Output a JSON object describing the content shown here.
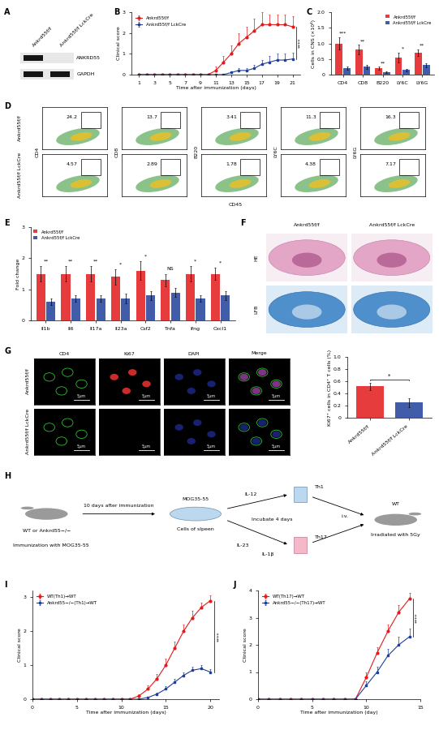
{
  "chart_data": [
    {
      "type": "line",
      "xlabel": "Time after immunization (days)",
      "ylabel": "Clinical score",
      "x": [
        1,
        2,
        3,
        4,
        5,
        6,
        7,
        8,
        9,
        10,
        11,
        12,
        13,
        14,
        15,
        16,
        17,
        18,
        19,
        20,
        21
      ],
      "xlim": [
        0,
        22
      ],
      "xticks": [
        1,
        3,
        5,
        7,
        9,
        11,
        13,
        15,
        17,
        19,
        21
      ],
      "ylim": [
        0,
        3
      ],
      "yticks": [
        0,
        1,
        2,
        3
      ],
      "legend": "upper left",
      "annotations": [
        "****"
      ],
      "series": [
        {
          "name": "Ankrd55f/f",
          "color": "#e31a1c",
          "marker": "o",
          "values": [
            0,
            0,
            0,
            0,
            0,
            0,
            0,
            0,
            0,
            0,
            0.2,
            0.6,
            1.0,
            1.5,
            1.8,
            2.1,
            2.4,
            2.4,
            2.4,
            2.4,
            2.3
          ],
          "errors": [
            0,
            0,
            0,
            0,
            0,
            0,
            0,
            0,
            0,
            0,
            0.2,
            0.3,
            0.4,
            0.5,
            0.5,
            0.6,
            0.6,
            0.5,
            0.5,
            0.5,
            0.5
          ]
        },
        {
          "name": "Ankrd55f/f LckCre",
          "color": "#1f3f99",
          "marker": "s",
          "values": [
            0,
            0,
            0,
            0,
            0,
            0,
            0,
            0,
            0,
            0,
            0,
            0,
            0.1,
            0.2,
            0.2,
            0.3,
            0.5,
            0.6,
            0.7,
            0.7,
            0.75
          ],
          "errors": [
            0,
            0,
            0,
            0,
            0,
            0,
            0,
            0,
            0,
            0,
            0,
            0,
            0.05,
            0.1,
            0.1,
            0.15,
            0.2,
            0.3,
            0.3,
            0.3,
            0.3
          ]
        }
      ]
    },
    {
      "type": "bar",
      "ylabel": "Cells in CNS (×10⁴)",
      "categories": [
        "CD4",
        "CD8",
        "B220",
        "LY6C",
        "LY6G"
      ],
      "ylim": [
        0,
        2
      ],
      "yticks": [
        0,
        0.5,
        {
          "value": 1,
          "label": "1.0"
        },
        1.5,
        {
          "value": 2,
          "label": "2.0"
        }
      ],
      "legend": "upper right",
      "annotations": [
        "***",
        "**",
        "**",
        "*",
        "**"
      ],
      "series": [
        {
          "name": "Ankrd55f/f",
          "color": "#e31a1c",
          "values": [
            1.0,
            0.8,
            0.2,
            0.55,
            0.7
          ],
          "errors": [
            0.2,
            0.15,
            0.05,
            0.15,
            0.1
          ]
        },
        {
          "name": "Ankrd55f/f LckCre",
          "color": "#1f3f99",
          "values": [
            0.2,
            0.25,
            0.08,
            0.15,
            0.3
          ],
          "errors": [
            0.05,
            0.07,
            0.02,
            0.04,
            0.06
          ]
        }
      ]
    },
    {
      "type": "bar",
      "ylabel": "Fold change",
      "categories": [
        "Il1b",
        "Il6",
        "Il17a",
        "Il23a",
        "Csf2",
        "Tnfa",
        "Ifng",
        "Cxcl1"
      ],
      "ylim": [
        0,
        3
      ],
      "yticks": [
        0,
        1,
        2,
        3
      ],
      "legend": "upper left",
      "annotations": [
        "**",
        "**",
        "**",
        "*",
        "*",
        "NS",
        "*",
        "*"
      ],
      "series": [
        {
          "name": "Ankrd55f/f",
          "color": "#e31a1c",
          "values": [
            1.5,
            1.5,
            1.5,
            1.4,
            1.6,
            1.3,
            1.5,
            1.5
          ],
          "errors": [
            0.25,
            0.25,
            0.25,
            0.25,
            0.3,
            0.2,
            0.25,
            0.2
          ]
        },
        {
          "name": "Ankrd55f/f LckCre",
          "color": "#1f3f99",
          "values": [
            0.6,
            0.7,
            0.7,
            0.7,
            0.8,
            0.9,
            0.7,
            0.8
          ],
          "errors": [
            0.1,
            0.1,
            0.1,
            0.15,
            0.15,
            0.15,
            0.1,
            0.15
          ]
        }
      ]
    },
    {
      "type": "bar",
      "ylabel": "Ki67⁺ cells in CD4⁺ T cells (%)",
      "categories": [
        "Ankrd55f/f",
        "Ankrd55f/f LckCre"
      ],
      "colors": [
        "#e31a1c",
        "#1f3f99"
      ],
      "ylim": [
        0,
        1
      ],
      "yticks": [
        0,
        0.2,
        0.4,
        0.6,
        0.8,
        {
          "value": 1,
          "label": "1.0"
        }
      ],
      "annotations": [
        "*",
        null
      ],
      "series": [
        {
          "values": [
            0.52,
            0.25
          ],
          "errors": [
            0.06,
            0.07
          ]
        }
      ]
    },
    {
      "type": "line",
      "xlabel": "Time after immunization (days)",
      "ylabel": "Clinical score",
      "x": [
        0,
        1,
        2,
        3,
        4,
        5,
        6,
        7,
        8,
        9,
        10,
        11,
        12,
        13,
        14,
        15,
        16,
        17,
        18,
        19,
        20
      ],
      "xlim": [
        0,
        21
      ],
      "xticks": [
        0,
        5,
        10,
        15,
        20
      ],
      "ylim": [
        0,
        3.2
      ],
      "yticks": [
        0,
        1,
        2,
        3
      ],
      "legend": "upper left",
      "annotations": [
        "****"
      ],
      "series": [
        {
          "name": "WT(Th1)→WT",
          "color": "#e31a1c",
          "marker": "o",
          "values": [
            0,
            0,
            0,
            0,
            0,
            0,
            0,
            0,
            0,
            0,
            0,
            0,
            0.1,
            0.3,
            0.6,
            1.0,
            1.5,
            2.0,
            2.4,
            2.7,
            2.9
          ],
          "errors": [
            0,
            0,
            0,
            0,
            0,
            0,
            0,
            0,
            0,
            0,
            0,
            0,
            0.05,
            0.1,
            0.15,
            0.2,
            0.2,
            0.2,
            0.2,
            0.15,
            0.15
          ]
        },
        {
          "name": "Ankrd55−/−(Th1)→WT",
          "color": "#1f3f99",
          "marker": "s",
          "values": [
            0,
            0,
            0,
            0,
            0,
            0,
            0,
            0,
            0,
            0,
            0,
            0,
            0,
            0.05,
            0.15,
            0.3,
            0.5,
            0.7,
            0.85,
            0.9,
            0.8
          ],
          "errors": [
            0,
            0,
            0,
            0,
            0,
            0,
            0,
            0,
            0,
            0,
            0,
            0,
            0,
            0.03,
            0.05,
            0.08,
            0.1,
            0.1,
            0.1,
            0.1,
            0.08
          ]
        }
      ]
    },
    {
      "type": "line",
      "xlabel": "Time after immunization (day)",
      "ylabel": "Clinical score",
      "x": [
        0,
        1,
        2,
        3,
        4,
        5,
        6,
        7,
        8,
        9,
        10,
        11,
        12,
        13,
        14
      ],
      "xlim": [
        0,
        15
      ],
      "xticks": [
        0,
        5,
        10,
        15
      ],
      "ylim": [
        0,
        4
      ],
      "yticks": [
        0,
        1,
        2,
        3,
        4
      ],
      "legend": "upper left",
      "annotations": [
        "****"
      ],
      "series": [
        {
          "name": "WT(Th17)→WT",
          "color": "#e31a1c",
          "marker": "o",
          "values": [
            0,
            0,
            0,
            0,
            0,
            0,
            0,
            0,
            0,
            0,
            0.8,
            1.7,
            2.5,
            3.2,
            3.7
          ],
          "errors": [
            0,
            0,
            0,
            0,
            0,
            0,
            0,
            0,
            0,
            0,
            0.2,
            0.2,
            0.25,
            0.25,
            0.2
          ]
        },
        {
          "name": "Ankrd55−/−(Th17)→WT",
          "color": "#1f3f99",
          "marker": "s",
          "values": [
            0,
            0,
            0,
            0,
            0,
            0,
            0,
            0,
            0,
            0,
            0.5,
            1.0,
            1.6,
            2.0,
            2.3
          ],
          "errors": [
            0,
            0,
            0,
            0,
            0,
            0,
            0,
            0,
            0,
            0,
            0.15,
            0.2,
            0.25,
            0.3,
            0.3
          ]
        }
      ]
    }
  ],
  "figure": {
    "panel_letters": [
      "A",
      "B",
      "C",
      "D",
      "E",
      "F",
      "G",
      "H",
      "I",
      "J"
    ],
    "blot": {
      "lanes": [
        "Ankrd55f/f",
        "Ankrd55f/f LckCre"
      ],
      "bands": [
        "ANKRD55",
        "GAPDH"
      ]
    },
    "flow": {
      "rows": [
        "Ankrd55f/f",
        "Ankrd55f/f LckCre"
      ],
      "markers": [
        "CD4",
        "CD8",
        "B220",
        "LY6C",
        "LY6G"
      ],
      "x_label": "CD45",
      "percentages": [
        [
          24.2,
          13.7,
          3.41,
          11.3,
          16.3
        ],
        [
          4.57,
          2.89,
          1.78,
          4.38,
          7.17
        ]
      ]
    },
    "histology": {
      "rows": [
        "HE",
        "LFB"
      ],
      "columns": [
        "Ankrd55f/f",
        "Ankrd55f/f LckCre"
      ]
    },
    "if_images": {
      "channels": [
        "CD4",
        "Ki67",
        "DAPI",
        "Merge"
      ],
      "rows": [
        "Ankrd55f/f",
        "Ankrd55f/f LckCre"
      ],
      "scale_bar": "5μm"
    },
    "diagram": {
      "source": "WT or Ankrd55−/−",
      "step1": "Immunization with MOG35-55",
      "step2": "10 days after immunization",
      "dish": "MOG35-55",
      "dish_caption": "Cells of slpeen",
      "th1_cytokine": "IL-12",
      "incubate": "Incubate 4 days",
      "th17_cytokines": [
        "IL-23",
        "IL-1β"
      ],
      "th1": "Th1",
      "th17": "Th17",
      "route": "i.v.",
      "recipient": "WT",
      "recipient_caption": "Irradiated with 5Gy"
    }
  }
}
